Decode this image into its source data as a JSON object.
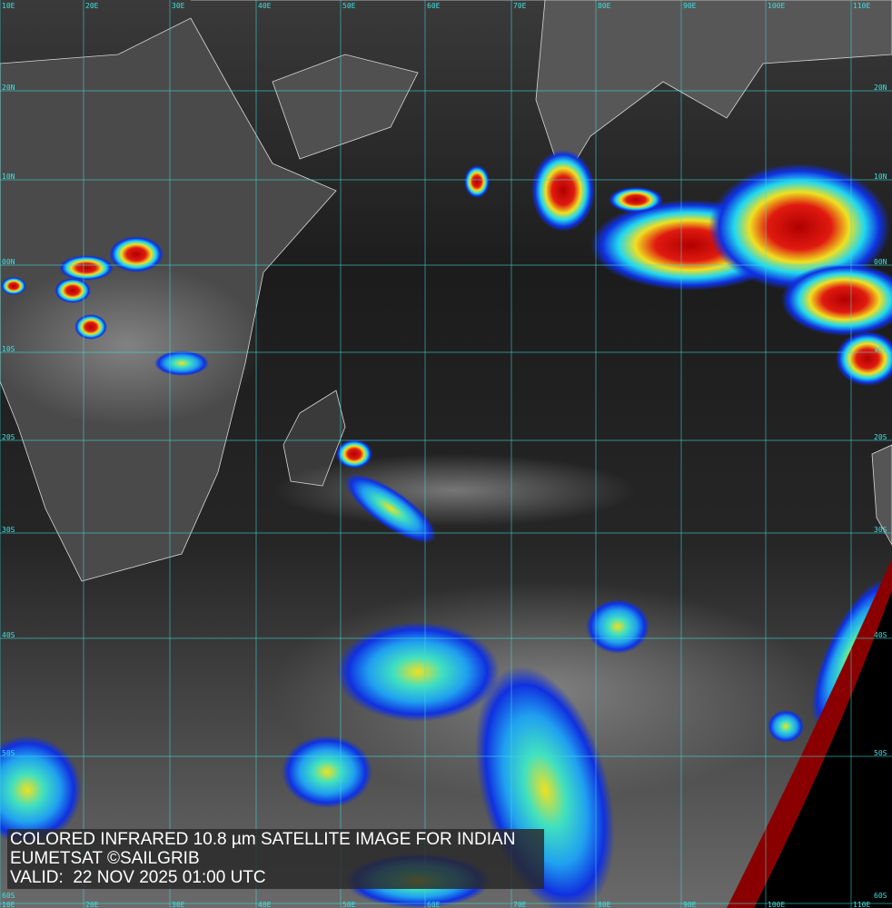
{
  "caption": {
    "title": "COLORED INFRARED 10.8 µm SATELLITE IMAGE FOR INDIAN",
    "credit": "EUMETSAT ©SAILGRIB",
    "valid": "VALID:  22 NOV 2025 01:00 UTC"
  },
  "grid": {
    "longitudes": [
      "10E",
      "20E",
      "30E",
      "40E",
      "50E",
      "60E",
      "70E",
      "80E",
      "90E",
      "100E",
      "110E"
    ],
    "latitudes": [
      "20N",
      "10N",
      "00N",
      "10S",
      "20S",
      "30S",
      "40S",
      "50S",
      "60S"
    ]
  },
  "colors": {
    "grid": "#3fe0e0",
    "coast": "#d8d8d8",
    "cold_cloud_red": "#d01010",
    "cloud_yellow": "#f0e020",
    "cloud_cyan": "#20d8f0",
    "cloud_blue": "#1030e0",
    "space": "#8a0000"
  }
}
